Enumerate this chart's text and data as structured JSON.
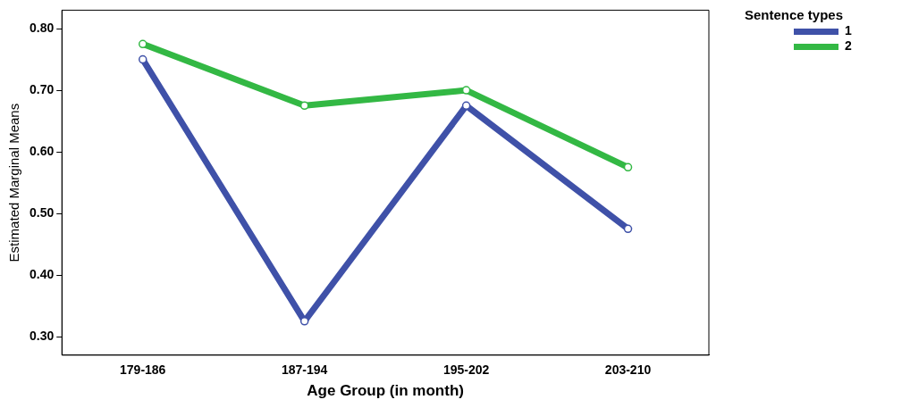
{
  "chart_data": {
    "type": "line",
    "xlabel": "Age Group (in month)",
    "ylabel": "Estimated Marginal Means",
    "legend_title": "Sentence types",
    "categories": [
      "179-186",
      "187-194",
      "195-202",
      "203-210"
    ],
    "series": [
      {
        "name": "1",
        "color": "#3f51a8",
        "values": [
          0.75,
          0.325,
          0.675,
          0.475
        ]
      },
      {
        "name": "2",
        "color": "#33b844",
        "values": [
          0.775,
          0.675,
          0.7,
          0.575
        ]
      }
    ],
    "ylim": [
      0.27,
      0.83
    ],
    "yticks": [
      {
        "value": 0.3,
        "label": "0.30"
      },
      {
        "value": 0.4,
        "label": "0.40"
      },
      {
        "value": 0.5,
        "label": "0.50"
      },
      {
        "value": 0.6,
        "label": "0.60"
      },
      {
        "value": 0.7,
        "label": "0.70"
      },
      {
        "value": 0.8,
        "label": "0.80"
      }
    ],
    "grid": false,
    "legend": "top right",
    "marker": "circle",
    "line_style": "solid"
  }
}
